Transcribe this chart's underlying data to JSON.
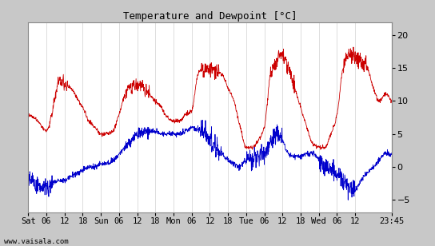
{
  "title": "Temperature and Dewpoint [°C]",
  "ylabel_right_ticks": [
    20,
    15,
    10,
    5,
    0,
    -5
  ],
  "ylim": [
    -7,
    22
  ],
  "xlim": [
    0,
    120
  ],
  "xtick_labels": [
    "Sat",
    "06",
    "12",
    "18",
    "Sun",
    "06",
    "12",
    "18",
    "Mon",
    "06",
    "12",
    "18",
    "Tue",
    "06",
    "12",
    "18",
    "Wed",
    "06",
    "12",
    "23:45"
  ],
  "xtick_positions": [
    0,
    6,
    12,
    18,
    24,
    30,
    36,
    42,
    48,
    54,
    60,
    66,
    72,
    78,
    84,
    90,
    96,
    102,
    108,
    120
  ],
  "plot_bg_color": "#ffffff",
  "outer_bg_color": "#c8c8c8",
  "grid_color": "#d0d0d0",
  "temp_color": "#cc0000",
  "dewp_color": "#0000cc",
  "watermark": "www.vaisala.com",
  "line_width": 0.6,
  "fig_width": 5.44,
  "fig_height": 3.08,
  "dpi": 100
}
